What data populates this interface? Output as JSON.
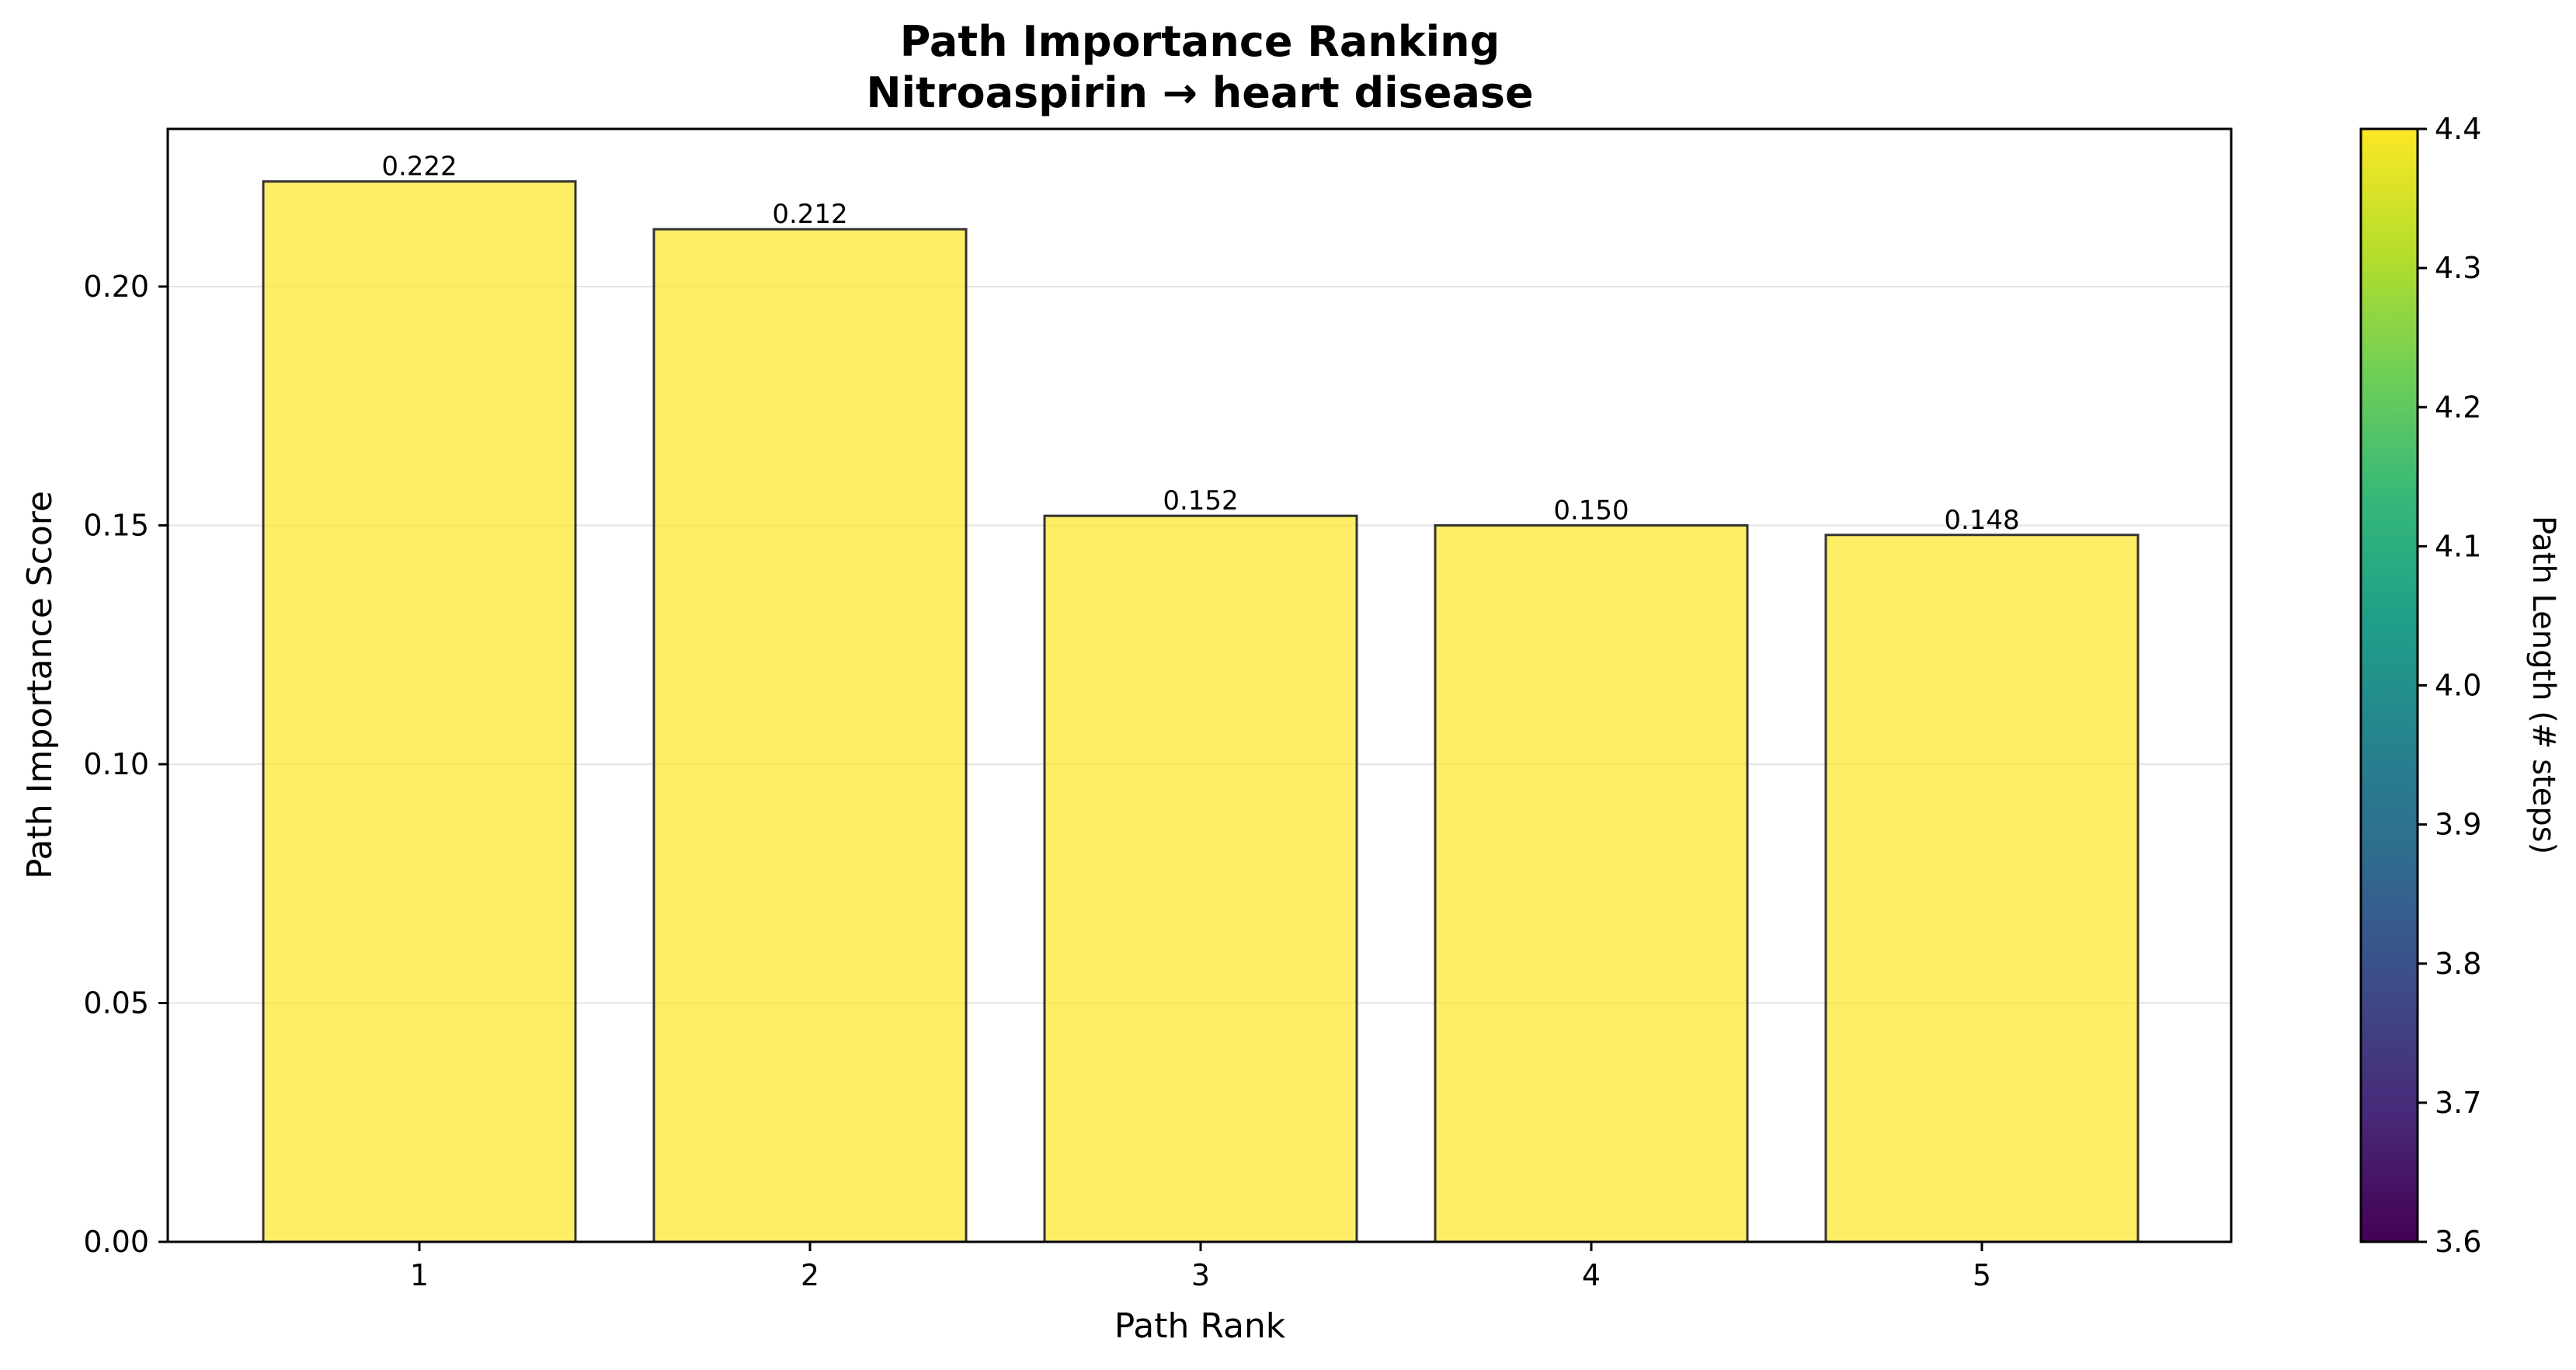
{
  "chart_data": {
    "type": "bar",
    "title": "Path Importance Ranking",
    "subtitle": "Nitroaspirin → heart disease",
    "xlabel": "Path Rank",
    "ylabel": "Path Importance Score",
    "categories": [
      "1",
      "2",
      "3",
      "4",
      "5"
    ],
    "values": [
      0.222,
      0.212,
      0.152,
      0.15,
      0.148
    ],
    "data_labels": [
      "0.222",
      "0.212",
      "0.152",
      "0.150",
      "0.148"
    ],
    "ylim": [
      0,
      0.233
    ],
    "yticks": [
      0.0,
      0.05,
      0.1,
      0.15,
      0.2
    ],
    "ytick_labels": [
      "0.00",
      "0.05",
      "0.10",
      "0.15",
      "0.20"
    ],
    "grid": "y-axis horizontal lines",
    "bar_color": "#fde725",
    "bar_edge_color": "#333333",
    "colorbar": {
      "label": "Path Length (# steps)",
      "colormap": "viridis",
      "range": [
        3.6,
        4.4
      ],
      "ticks": [
        "3.6",
        "3.7",
        "3.8",
        "3.9",
        "4.0",
        "4.1",
        "4.2",
        "4.3",
        "4.4"
      ],
      "stops": [
        "#440154",
        "#482878",
        "#3e4989",
        "#31688e",
        "#26828e",
        "#1f9e89",
        "#35b779",
        "#6ece58",
        "#b5de2b",
        "#fde725"
      ]
    }
  }
}
